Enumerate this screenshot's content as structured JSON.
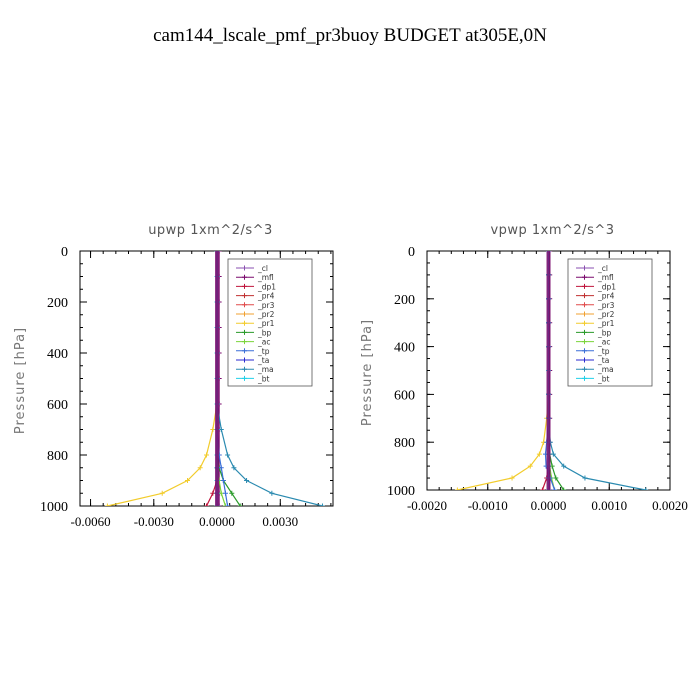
{
  "page_title": "cam144_lscale_pmf_pr3buoy  BUDGET at305E,0N",
  "chart_data": [
    {
      "type": "line",
      "title": "upwp   1xm^2/s^3",
      "ylabel": "Pressure  [hPa]",
      "xlabel": "",
      "xlim": [
        -0.0065,
        0.0055
      ],
      "ylim": [
        1000,
        0
      ],
      "x_ticks": [
        -0.006,
        -0.003,
        0.0,
        0.003
      ],
      "x_tick_labels": [
        "-0.0060",
        "-0.0030",
        "0.0000",
        "0.0030"
      ],
      "y_ticks": [
        0,
        200,
        400,
        600,
        800,
        1000
      ],
      "y_tick_labels": [
        "0",
        "200",
        "400",
        "600",
        "800",
        "1000"
      ],
      "grid": false,
      "legend_position": "top-right",
      "series": [
        {
          "name": "_cl",
          "color": "#8a4fb0",
          "x": [
            0,
            0,
            0,
            0,
            0,
            0,
            0,
            0,
            0,
            0,
            0,
            0,
            0
          ],
          "y": [
            0,
            100,
            200,
            300,
            400,
            500,
            600,
            700,
            800,
            850,
            900,
            950,
            1000
          ]
        },
        {
          "name": "_mfl",
          "color": "#7b0a6e",
          "x": [
            0.0001,
            0.0001,
            0.0001,
            0.0001,
            0.0001,
            0.0001,
            0.0001,
            0.0001,
            0.0001,
            0.0001,
            0.0001,
            0.0001,
            0.0001
          ],
          "y": [
            0,
            100,
            200,
            300,
            400,
            500,
            600,
            700,
            800,
            850,
            900,
            950,
            1000
          ]
        },
        {
          "name": "_dp1",
          "color": "#c0143c",
          "x": [
            0,
            0,
            0,
            0,
            0,
            0,
            0,
            0,
            0,
            0,
            0,
            -0.0002,
            -0.0005
          ],
          "y": [
            0,
            100,
            200,
            300,
            400,
            500,
            600,
            700,
            800,
            850,
            900,
            950,
            1000
          ]
        },
        {
          "name": "_pr4",
          "color": "#c03030",
          "x": [
            0,
            0,
            0,
            0,
            0,
            0,
            0,
            0,
            0,
            0,
            0,
            0,
            0
          ],
          "y": [
            0,
            100,
            200,
            300,
            400,
            500,
            600,
            700,
            800,
            850,
            900,
            950,
            1000
          ]
        },
        {
          "name": "_pr3",
          "color": "#e04a4a",
          "x": [
            0,
            0,
            0,
            0,
            0,
            0,
            0,
            0,
            0,
            0,
            0,
            0,
            0
          ],
          "y": [
            0,
            100,
            200,
            300,
            400,
            500,
            600,
            700,
            800,
            850,
            900,
            950,
            1000
          ]
        },
        {
          "name": "_pr2",
          "color": "#f0a030",
          "x": [
            0,
            0,
            0,
            0,
            0,
            0,
            0,
            0,
            0,
            0,
            0,
            0,
            0
          ],
          "y": [
            0,
            100,
            200,
            300,
            400,
            500,
            600,
            700,
            800,
            850,
            900,
            950,
            1000
          ]
        },
        {
          "name": "_pr1",
          "color": "#f2cc2c",
          "x": [
            0,
            0,
            0,
            0,
            0,
            0,
            0,
            -0.0002,
            -0.0005,
            -0.0008,
            -0.0014,
            -0.0026,
            -0.0052
          ],
          "y": [
            0,
            100,
            200,
            300,
            400,
            500,
            600,
            700,
            800,
            850,
            900,
            950,
            1000
          ]
        },
        {
          "name": "_bp",
          "color": "#2a9a2a",
          "x": [
            0,
            0,
            0,
            0,
            0,
            0,
            0,
            0,
            0,
            0.0001,
            0.0003,
            0.0007,
            0.0011
          ],
          "y": [
            0,
            100,
            200,
            300,
            400,
            500,
            600,
            700,
            800,
            850,
            900,
            950,
            1000
          ]
        },
        {
          "name": "_ac",
          "color": "#7ad43a",
          "x": [
            0,
            0,
            0,
            0,
            0,
            0,
            0,
            0,
            0,
            0,
            0.0001,
            0.0002,
            0.0004
          ],
          "y": [
            0,
            100,
            200,
            300,
            400,
            500,
            600,
            700,
            800,
            850,
            900,
            950,
            1000
          ]
        },
        {
          "name": "_tp",
          "color": "#3a6fd8",
          "x": [
            0,
            0,
            0,
            0,
            0,
            0,
            0,
            0,
            0.0001,
            0.0002,
            0.0003,
            0.0004,
            0.0005
          ],
          "y": [
            0,
            100,
            200,
            300,
            400,
            500,
            600,
            700,
            800,
            850,
            900,
            950,
            1000
          ]
        },
        {
          "name": "_ta",
          "color": "#2a2ad0",
          "x": [
            0,
            0,
            0,
            0,
            0,
            0,
            0,
            0,
            0,
            0,
            0,
            0,
            0
          ],
          "y": [
            0,
            100,
            200,
            300,
            400,
            500,
            600,
            700,
            800,
            850,
            900,
            950,
            1000
          ]
        },
        {
          "name": "_ma",
          "color": "#2a8ab0",
          "x": [
            0,
            0,
            0,
            0,
            0,
            0,
            0,
            0.0002,
            0.0005,
            0.0008,
            0.0014,
            0.0026,
            0.005
          ],
          "y": [
            0,
            100,
            200,
            300,
            400,
            500,
            600,
            700,
            800,
            850,
            900,
            950,
            1000
          ]
        },
        {
          "name": "_bt",
          "color": "#20d0e8",
          "x": [
            0,
            0,
            0,
            0,
            0,
            0,
            0,
            0,
            0,
            0,
            0,
            0,
            0
          ],
          "y": [
            0,
            100,
            200,
            300,
            400,
            500,
            600,
            700,
            800,
            850,
            900,
            950,
            1000
          ]
        }
      ]
    },
    {
      "type": "line",
      "title": "vpwp   1xm^2/s^3",
      "ylabel": "Pressure  [hPa]",
      "xlabel": "",
      "xlim": [
        -0.002,
        0.002
      ],
      "ylim": [
        1000,
        0
      ],
      "x_ticks": [
        -0.002,
        -0.001,
        0.0,
        0.001,
        0.002
      ],
      "x_tick_labels": [
        "-0.0020",
        "-0.0010",
        "0.0000",
        "0.0010",
        "0.0020"
      ],
      "y_ticks": [
        0,
        200,
        400,
        600,
        800,
        1000
      ],
      "y_tick_labels": [
        "0",
        "200",
        "400",
        "600",
        "800",
        "1000"
      ],
      "grid": false,
      "legend_position": "top-right",
      "series": [
        {
          "name": "_cl",
          "color": "#8a4fb0",
          "x": [
            0,
            0,
            0,
            0,
            0,
            0,
            0,
            0,
            0,
            0,
            0,
            0,
            0
          ],
          "y": [
            0,
            100,
            200,
            300,
            400,
            500,
            600,
            700,
            800,
            850,
            900,
            950,
            1000
          ]
        },
        {
          "name": "_mfl",
          "color": "#7b0a6e",
          "x": [
            2e-05,
            2e-05,
            2e-05,
            2e-05,
            2e-05,
            2e-05,
            2e-05,
            2e-05,
            2e-05,
            2e-05,
            2e-05,
            2e-05,
            2e-05
          ],
          "y": [
            0,
            100,
            200,
            300,
            400,
            500,
            600,
            700,
            800,
            850,
            900,
            950,
            1000
          ]
        },
        {
          "name": "_dp1",
          "color": "#c0143c",
          "x": [
            0,
            0,
            0,
            0,
            0,
            0,
            0,
            0,
            0,
            0,
            0,
            -3e-05,
            -0.0001
          ],
          "y": [
            0,
            100,
            200,
            300,
            400,
            500,
            600,
            700,
            800,
            850,
            900,
            950,
            1000
          ]
        },
        {
          "name": "_pr4",
          "color": "#c03030",
          "x": [
            0,
            0,
            0,
            0,
            0,
            0,
            0,
            0,
            0,
            0,
            0,
            0,
            0
          ],
          "y": [
            0,
            100,
            200,
            300,
            400,
            500,
            600,
            700,
            800,
            850,
            900,
            950,
            1000
          ]
        },
        {
          "name": "_pr3",
          "color": "#e04a4a",
          "x": [
            0,
            0,
            0,
            0,
            0,
            0,
            0,
            0,
            0,
            0,
            0,
            0,
            0
          ],
          "y": [
            0,
            100,
            200,
            300,
            400,
            500,
            600,
            700,
            800,
            850,
            900,
            950,
            1000
          ]
        },
        {
          "name": "_pr2",
          "color": "#f0a030",
          "x": [
            0,
            0,
            0,
            0,
            0,
            0,
            0,
            0,
            0,
            0,
            0,
            0,
            0
          ],
          "y": [
            0,
            100,
            200,
            300,
            400,
            500,
            600,
            700,
            800,
            850,
            900,
            950,
            1000
          ]
        },
        {
          "name": "_pr1",
          "color": "#f2cc2c",
          "x": [
            0,
            0,
            0,
            0,
            0,
            0,
            0,
            -3e-05,
            -8e-05,
            -0.00015,
            -0.0003,
            -0.0006,
            -0.0015
          ],
          "y": [
            0,
            100,
            200,
            300,
            400,
            500,
            600,
            700,
            800,
            850,
            900,
            950,
            1000
          ]
        },
        {
          "name": "_bp",
          "color": "#2a9a2a",
          "x": [
            0,
            0,
            0,
            0,
            0,
            0,
            0,
            0,
            0,
            2e-05,
            6e-05,
            0.00012,
            0.00025
          ],
          "y": [
            0,
            100,
            200,
            300,
            400,
            500,
            600,
            700,
            800,
            850,
            900,
            950,
            1000
          ]
        },
        {
          "name": "_ac",
          "color": "#7ad43a",
          "x": [
            0,
            0,
            0,
            0,
            0,
            0,
            0,
            0,
            0,
            0,
            2e-05,
            5e-05,
            0.0001
          ],
          "y": [
            0,
            100,
            200,
            300,
            400,
            500,
            600,
            700,
            800,
            850,
            900,
            950,
            1000
          ]
        },
        {
          "name": "_tp",
          "color": "#3a6fd8",
          "x": [
            0,
            0,
            0,
            0,
            0,
            0,
            0,
            0,
            -3e-05,
            -5e-05,
            -4e-05,
            3e-05,
            0.0001
          ],
          "y": [
            0,
            100,
            200,
            300,
            400,
            500,
            600,
            700,
            800,
            850,
            900,
            950,
            1000
          ]
        },
        {
          "name": "_ta",
          "color": "#2a2ad0",
          "x": [
            0,
            0,
            0,
            0,
            0,
            0,
            0,
            0,
            0,
            0,
            0,
            0,
            0
          ],
          "y": [
            0,
            100,
            200,
            300,
            400,
            500,
            600,
            700,
            800,
            850,
            900,
            950,
            1000
          ]
        },
        {
          "name": "_ma",
          "color": "#2a8ab0",
          "x": [
            0,
            0,
            0,
            0,
            0,
            0,
            0,
            0,
            3e-05,
            8e-05,
            0.00025,
            0.0006,
            0.0016
          ],
          "y": [
            0,
            100,
            200,
            300,
            400,
            500,
            600,
            700,
            800,
            850,
            900,
            950,
            1000
          ]
        },
        {
          "name": "_bt",
          "color": "#20d0e8",
          "x": [
            0,
            0,
            0,
            0,
            0,
            0,
            0,
            0,
            0,
            0,
            0,
            0,
            0
          ],
          "y": [
            0,
            100,
            200,
            300,
            400,
            500,
            600,
            700,
            800,
            850,
            900,
            950,
            1000
          ]
        }
      ]
    }
  ]
}
